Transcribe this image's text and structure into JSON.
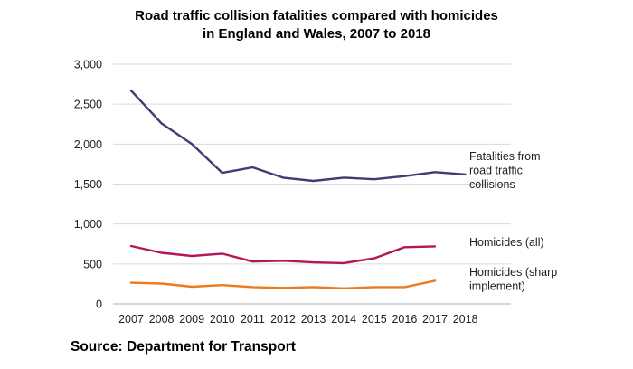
{
  "chart_data": {
    "type": "line",
    "title_lines": [
      "Road traffic collision fatalities compared with homicides",
      "in England and Wales, 2007 to 2018"
    ],
    "xlabel": "",
    "ylabel": "",
    "x": [
      "2007",
      "2008",
      "2009",
      "2010",
      "2011",
      "2012",
      "2013",
      "2014",
      "2015",
      "2016",
      "2017",
      "2018"
    ],
    "ylim": [
      0,
      3000
    ],
    "yticks": [
      0,
      500,
      1000,
      1500,
      2000,
      2500,
      3000
    ],
    "ytick_labels": [
      "0",
      "500",
      "1,000",
      "1,500",
      "2,000",
      "2,500",
      "3,000"
    ],
    "grid": true,
    "legend": "inline labels at right end of each series",
    "series": [
      {
        "name": "Fatalities from road traffic collisions",
        "label_lines": [
          "Fatalities from",
          "road traffic",
          "collisions"
        ],
        "color": "#3d3d73",
        "values": [
          2670,
          2260,
          2000,
          1640,
          1710,
          1580,
          1540,
          1580,
          1560,
          1600,
          1650,
          1620
        ]
      },
      {
        "name": "Homicides (all)",
        "label_lines": [
          "Homicides (all)"
        ],
        "color": "#b4165a",
        "values": [
          725,
          640,
          600,
          630,
          530,
          540,
          520,
          510,
          570,
          710,
          720,
          null
        ]
      },
      {
        "name": "Homicides (sharp implement)",
        "label_lines": [
          "Homicides (sharp",
          "implement)"
        ],
        "color": "#ea7b1f",
        "values": [
          265,
          255,
          215,
          235,
          210,
          200,
          210,
          195,
          210,
          210,
          290,
          null
        ]
      }
    ]
  },
  "source": "Source: Department for Transport"
}
